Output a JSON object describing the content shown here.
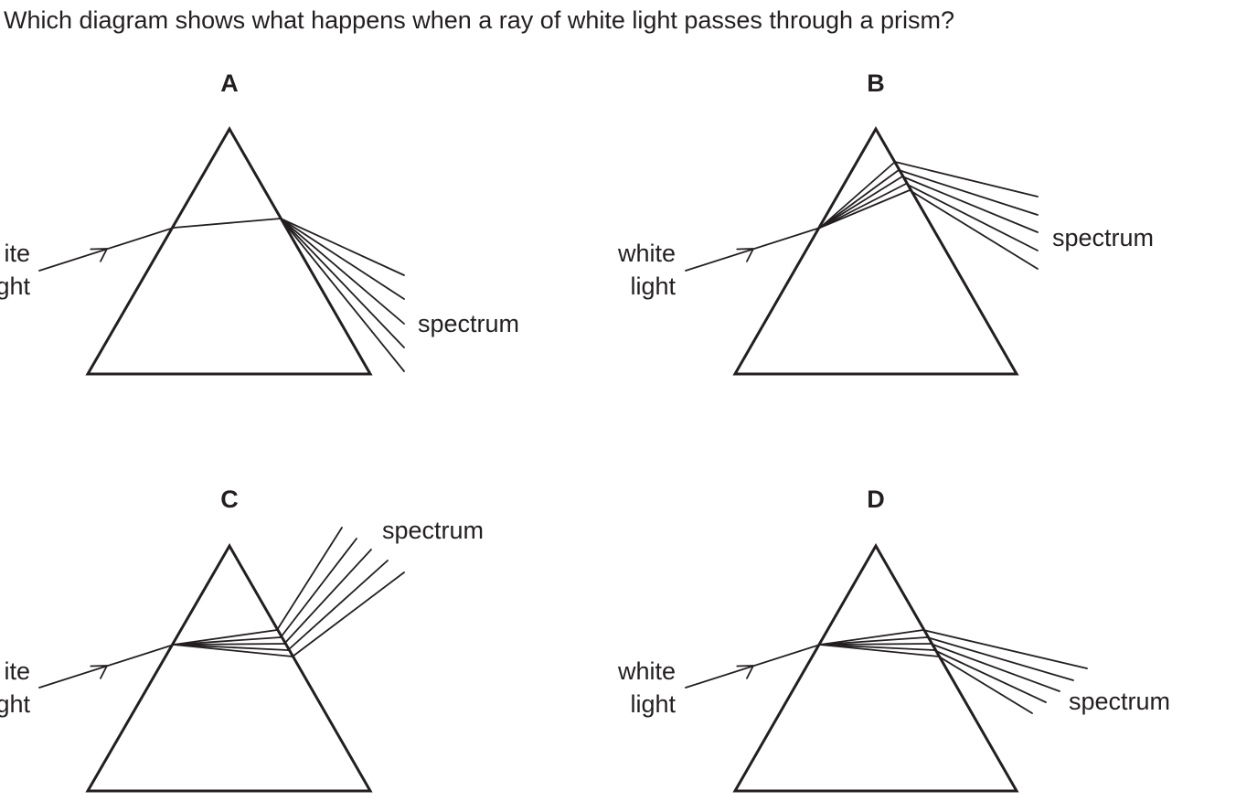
{
  "question": {
    "text": "Which diagram shows what happens when a ray of white light passes through a prism?"
  },
  "labels": {
    "incident_line1": "white",
    "incident_line2": "light",
    "incident_partial_line1": "ite",
    "incident_partial_line2": "ght",
    "spectrum": "spectrum"
  },
  "options": [
    {
      "letter": "A"
    },
    {
      "letter": "B"
    },
    {
      "letter": "C"
    },
    {
      "letter": "D"
    }
  ]
}
